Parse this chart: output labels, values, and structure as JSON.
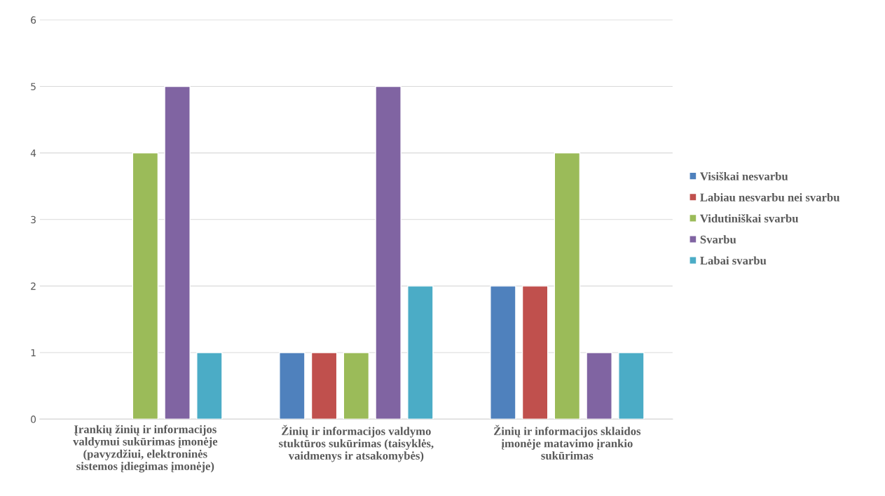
{
  "chart_data": {
    "type": "bar",
    "categories": [
      "Įrankių žinių ir informacijos\nvaldymui sukūrimas įmonėje\n(pavyzdžiui, elektroninės\nsistemos įdiegimas įmonėje)",
      "Žinių ir informacijos valdymo\nstuktūros sukūrimas (taisyklės,\nvaidmenys ir atsakomybės)",
      "Žinių ir informacijos sklaidos\nįmonėje matavimo įrankio\nsukūrimas"
    ],
    "series": [
      {
        "name": "Visiškai nesvarbu",
        "color": "#4f81bd",
        "values": [
          null,
          1,
          2
        ]
      },
      {
        "name": "Labiau nesvarbu nei svarbu",
        "color": "#c0504d",
        "values": [
          null,
          1,
          2
        ]
      },
      {
        "name": "Vidutiniškai svarbu",
        "color": "#9bbb59",
        "values": [
          4,
          1,
          4
        ]
      },
      {
        "name": "Svarbu",
        "color": "#8064a2",
        "values": [
          5,
          5,
          1
        ]
      },
      {
        "name": "Labai svarbu",
        "color": "#4bacc6",
        "values": [
          1,
          2,
          1
        ]
      }
    ],
    "ylim": [
      0,
      6
    ],
    "yticks": [
      0,
      1,
      2,
      3,
      4,
      5,
      6
    ],
    "grid": "y",
    "legend": "right"
  }
}
